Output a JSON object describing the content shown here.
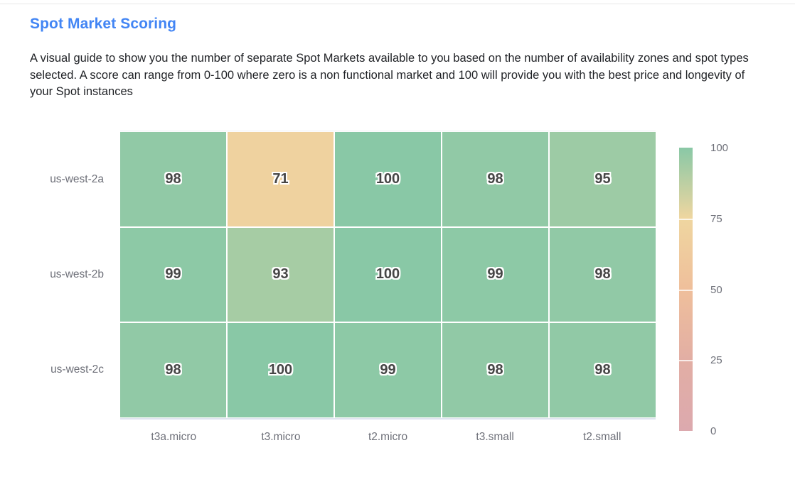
{
  "header": {
    "title": "Spot Market Scoring",
    "description": "A visual guide to show you the number of separate Spot Markets available to you based on the number of availability zones and spot types selected. A score can range from 0-100 where zero is a non functional market and 100 will provide you with the best price and longevity of your Spot instances"
  },
  "chart_data": {
    "type": "heatmap",
    "title": "Spot Market Scoring",
    "x_categories": [
      "t3a.micro",
      "t3.micro",
      "t2.micro",
      "t3.small",
      "t2.small"
    ],
    "y_categories": [
      "us-west-2a",
      "us-west-2b",
      "us-west-2c"
    ],
    "values": [
      [
        98,
        71,
        100,
        98,
        95
      ],
      [
        99,
        93,
        100,
        99,
        98
      ],
      [
        98,
        100,
        99,
        98,
        98
      ]
    ],
    "value_range": [
      0,
      100
    ],
    "legend_ticks": [
      100,
      75,
      50,
      25,
      0
    ],
    "legend_position": "right",
    "grid": false,
    "colorscale": [
      {
        "value": 0,
        "color": "#dca9ae"
      },
      {
        "value": 25,
        "color": "#e2aea4"
      },
      {
        "value": 50,
        "color": "#efbf9b"
      },
      {
        "value": 75,
        "color": "#efd6a0"
      },
      {
        "value": 100,
        "color": "#89c8a6"
      }
    ]
  },
  "colors": {
    "title": "#4285f4",
    "axis_label": "#6e7079",
    "cell_text": "#464646",
    "cell_gap": "#ffffff"
  }
}
